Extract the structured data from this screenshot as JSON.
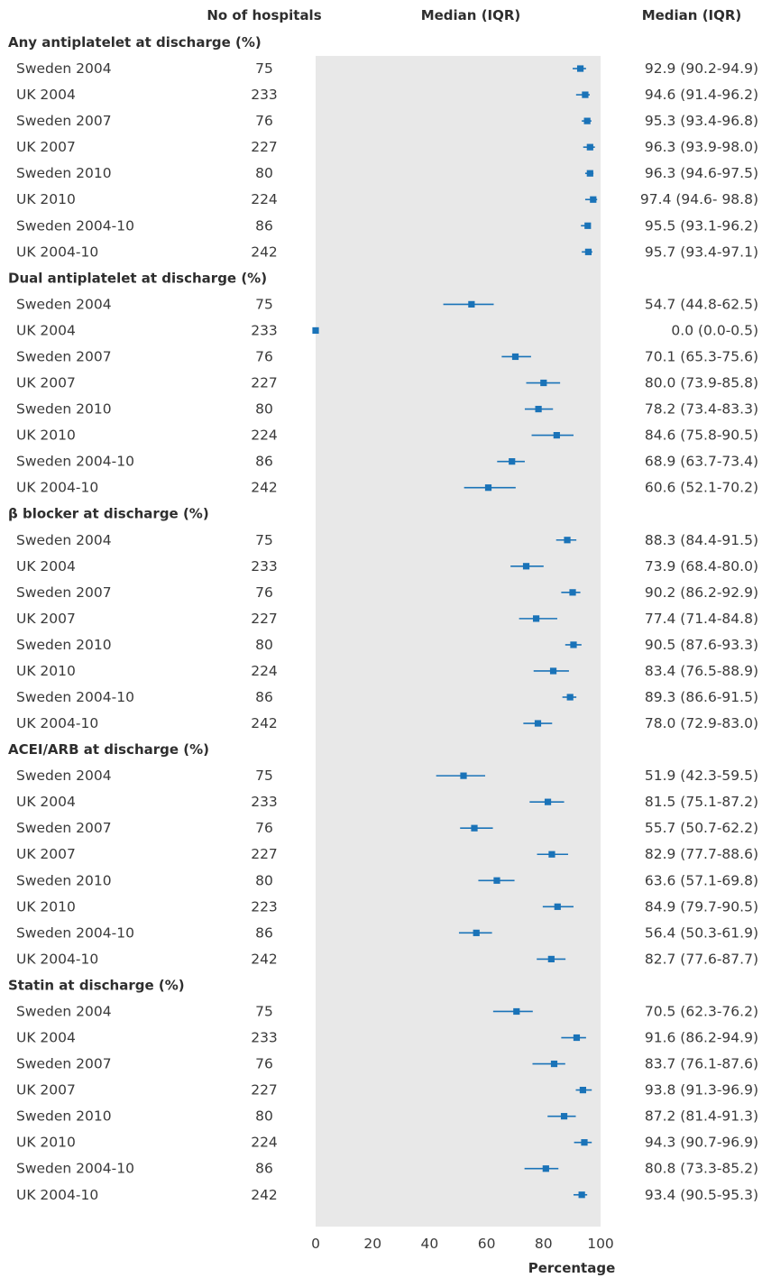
{
  "headers": {
    "hospitals": "No of hospitals",
    "median_plot": "Median (IQR)",
    "median_text": "Median (IQR)"
  },
  "chart_data": {
    "type": "forest",
    "xlabel": "Percentage",
    "xlim": [
      0,
      100
    ],
    "xticks": [
      "0",
      "20",
      "40",
      "60",
      "80",
      "100"
    ],
    "panel_color": "#e8e8e8",
    "marker_color": "#1a73b8",
    "sections": [
      {
        "title": "Any antiplatelet at discharge (%)",
        "rows": [
          {
            "label": "Sweden 2004",
            "n": "75",
            "median": 92.9,
            "lo": 90.2,
            "hi": 94.9,
            "text": "92.9 (90.2-94.9)"
          },
          {
            "label": "UK 2004",
            "n": "233",
            "median": 94.6,
            "lo": 91.4,
            "hi": 96.2,
            "text": "94.6 (91.4-96.2)"
          },
          {
            "label": "Sweden 2007",
            "n": "76",
            "median": 95.3,
            "lo": 93.4,
            "hi": 96.8,
            "text": "95.3 (93.4-96.8)"
          },
          {
            "label": "UK 2007",
            "n": "227",
            "median": 96.3,
            "lo": 93.9,
            "hi": 98.0,
            "text": "96.3 (93.9-98.0)"
          },
          {
            "label": "Sweden 2010",
            "n": "80",
            "median": 96.3,
            "lo": 94.6,
            "hi": 97.5,
            "text": "96.3 (94.6-97.5)"
          },
          {
            "label": "UK 2010",
            "n": "224",
            "median": 97.4,
            "lo": 94.6,
            "hi": 98.8,
            "text": "97.4 (94.6- 98.8)"
          },
          {
            "label": "Sweden 2004-10",
            "n": "86",
            "median": 95.5,
            "lo": 93.1,
            "hi": 96.2,
            "text": "95.5 (93.1-96.2)"
          },
          {
            "label": "UK 2004-10",
            "n": "242",
            "median": 95.7,
            "lo": 93.4,
            "hi": 97.1,
            "text": "95.7 (93.4-97.1)"
          }
        ]
      },
      {
        "title": "Dual antiplatelet at discharge (%)",
        "rows": [
          {
            "label": "Sweden 2004",
            "n": "75",
            "median": 54.7,
            "lo": 44.8,
            "hi": 62.5,
            "text": "54.7 (44.8-62.5)"
          },
          {
            "label": "UK 2004",
            "n": "233",
            "median": 0.0,
            "lo": 0.0,
            "hi": 0.5,
            "text": "0.0 (0.0-0.5)"
          },
          {
            "label": "Sweden 2007",
            "n": "76",
            "median": 70.1,
            "lo": 65.3,
            "hi": 75.6,
            "text": "70.1 (65.3-75.6)"
          },
          {
            "label": "UK 2007",
            "n": "227",
            "median": 80.0,
            "lo": 73.9,
            "hi": 85.8,
            "text": "80.0 (73.9-85.8)"
          },
          {
            "label": "Sweden 2010",
            "n": "80",
            "median": 78.2,
            "lo": 73.4,
            "hi": 83.3,
            "text": "78.2 (73.4-83.3)"
          },
          {
            "label": "UK 2010",
            "n": "224",
            "median": 84.6,
            "lo": 75.8,
            "hi": 90.5,
            "text": "84.6 (75.8-90.5)"
          },
          {
            "label": "Sweden 2004-10",
            "n": "86",
            "median": 68.9,
            "lo": 63.7,
            "hi": 73.4,
            "text": "68.9 (63.7-73.4)"
          },
          {
            "label": "UK 2004-10",
            "n": "242",
            "median": 60.6,
            "lo": 52.1,
            "hi": 70.2,
            "text": "60.6 (52.1-70.2)"
          }
        ]
      },
      {
        "title": "β blocker at discharge (%)",
        "rows": [
          {
            "label": "Sweden 2004",
            "n": "75",
            "median": 88.3,
            "lo": 84.4,
            "hi": 91.5,
            "text": "88.3 (84.4-91.5)"
          },
          {
            "label": "UK 2004",
            "n": "233",
            "median": 73.9,
            "lo": 68.4,
            "hi": 80.0,
            "text": "73.9 (68.4-80.0)"
          },
          {
            "label": "Sweden 2007",
            "n": "76",
            "median": 90.2,
            "lo": 86.2,
            "hi": 92.9,
            "text": "90.2 (86.2-92.9)"
          },
          {
            "label": "UK 2007",
            "n": "227",
            "median": 77.4,
            "lo": 71.4,
            "hi": 84.8,
            "text": "77.4 (71.4-84.8)"
          },
          {
            "label": "Sweden 2010",
            "n": "80",
            "median": 90.5,
            "lo": 87.6,
            "hi": 93.3,
            "text": "90.5 (87.6-93.3)"
          },
          {
            "label": "UK 2010",
            "n": "224",
            "median": 83.4,
            "lo": 76.5,
            "hi": 88.9,
            "text": "83.4 (76.5-88.9)"
          },
          {
            "label": "Sweden 2004-10",
            "n": "86",
            "median": 89.3,
            "lo": 86.6,
            "hi": 91.5,
            "text": "89.3 (86.6-91.5)"
          },
          {
            "label": "UK 2004-10",
            "n": "242",
            "median": 78.0,
            "lo": 72.9,
            "hi": 83.0,
            "text": "78.0 (72.9-83.0)"
          }
        ]
      },
      {
        "title": "ACEI/ARB at discharge (%)",
        "rows": [
          {
            "label": "Sweden 2004",
            "n": "75",
            "median": 51.9,
            "lo": 42.3,
            "hi": 59.5,
            "text": "51.9 (42.3-59.5)"
          },
          {
            "label": "UK 2004",
            "n": "233",
            "median": 81.5,
            "lo": 75.1,
            "hi": 87.2,
            "text": "81.5 (75.1-87.2)"
          },
          {
            "label": "Sweden 2007",
            "n": "76",
            "median": 55.7,
            "lo": 50.7,
            "hi": 62.2,
            "text": "55.7 (50.7-62.2)"
          },
          {
            "label": "UK 2007",
            "n": "227",
            "median": 82.9,
            "lo": 77.7,
            "hi": 88.6,
            "text": "82.9 (77.7-88.6)"
          },
          {
            "label": "Sweden 2010",
            "n": "80",
            "median": 63.6,
            "lo": 57.1,
            "hi": 69.8,
            "text": "63.6 (57.1-69.8)"
          },
          {
            "label": "UK 2010",
            "n": "223",
            "median": 84.9,
            "lo": 79.7,
            "hi": 90.5,
            "text": "84.9 (79.7-90.5)"
          },
          {
            "label": "Sweden 2004-10",
            "n": "86",
            "median": 56.4,
            "lo": 50.3,
            "hi": 61.9,
            "text": "56.4 (50.3-61.9)"
          },
          {
            "label": "UK 2004-10",
            "n": "242",
            "median": 82.7,
            "lo": 77.6,
            "hi": 87.7,
            "text": "82.7 (77.6-87.7)"
          }
        ]
      },
      {
        "title": "Statin at discharge (%)",
        "rows": [
          {
            "label": "Sweden 2004",
            "n": "75",
            "median": 70.5,
            "lo": 62.3,
            "hi": 76.2,
            "text": "70.5 (62.3-76.2)"
          },
          {
            "label": "UK 2004",
            "n": "233",
            "median": 91.6,
            "lo": 86.2,
            "hi": 94.9,
            "text": "91.6 (86.2-94.9)"
          },
          {
            "label": "Sweden 2007",
            "n": "76",
            "median": 83.7,
            "lo": 76.1,
            "hi": 87.6,
            "text": "83.7 (76.1-87.6)"
          },
          {
            "label": "UK 2007",
            "n": "227",
            "median": 93.8,
            "lo": 91.3,
            "hi": 96.9,
            "text": "93.8 (91.3-96.9)"
          },
          {
            "label": "Sweden 2010",
            "n": "80",
            "median": 87.2,
            "lo": 81.4,
            "hi": 91.3,
            "text": "87.2 (81.4-91.3)"
          },
          {
            "label": "UK 2010",
            "n": "224",
            "median": 94.3,
            "lo": 90.7,
            "hi": 96.9,
            "text": "94.3 (90.7-96.9)"
          },
          {
            "label": "Sweden 2004-10",
            "n": "86",
            "median": 80.8,
            "lo": 73.3,
            "hi": 85.2,
            "text": "80.8 (73.3-85.2)"
          },
          {
            "label": "UK 2004-10",
            "n": "242",
            "median": 93.4,
            "lo": 90.5,
            "hi": 95.3,
            "text": "93.4 (90.5-95.3)"
          }
        ]
      }
    ]
  }
}
